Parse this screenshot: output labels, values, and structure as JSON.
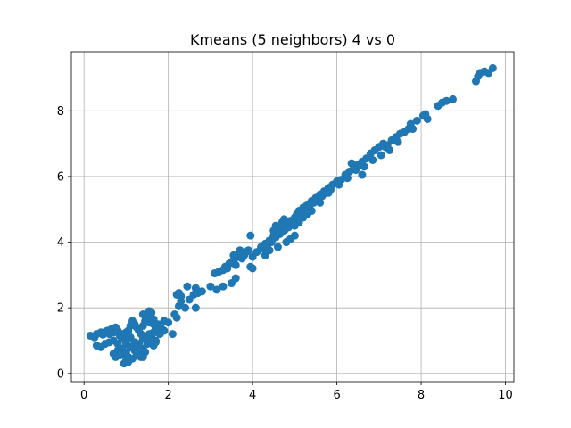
{
  "chart_data": {
    "type": "scatter",
    "title": "Kmeans (5 neighbors) 4 vs 0",
    "xlabel": "",
    "ylabel": "",
    "xlim": [
      -0.3,
      10.2
    ],
    "ylim": [
      -0.25,
      9.8
    ],
    "x_ticks": [
      0,
      2,
      4,
      6,
      8,
      10
    ],
    "y_ticks": [
      0,
      2,
      4,
      6,
      8
    ],
    "x_tick_labels": [
      "0",
      "2",
      "4",
      "6",
      "8",
      "10"
    ],
    "y_tick_labels": [
      "0",
      "2",
      "4",
      "6",
      "8"
    ],
    "grid": true,
    "marker_color": "#1f77b4",
    "series": [
      {
        "name": "points",
        "x": [
          0.15,
          0.25,
          0.3,
          0.4,
          0.45,
          0.55,
          0.6,
          0.65,
          0.7,
          0.75,
          0.8,
          0.85,
          0.9,
          0.95,
          1.0,
          1.05,
          1.1,
          1.15,
          1.2,
          1.25,
          1.3,
          1.35,
          1.4,
          1.45,
          1.5,
          1.55,
          1.6,
          1.65,
          1.7,
          1.75,
          0.3,
          0.4,
          0.5,
          0.6,
          0.7,
          0.8,
          0.9,
          1.0,
          1.1,
          1.2,
          1.3,
          1.4,
          1.5,
          1.6,
          1.7,
          0.7,
          0.8,
          0.9,
          1.0,
          1.1,
          1.2,
          1.3,
          1.4,
          1.5,
          0.75,
          0.85,
          0.95,
          1.05,
          1.15,
          1.25,
          1.35,
          0.95,
          1.0,
          1.05,
          1.1,
          1.3,
          1.35,
          1.4,
          1.45,
          1.0,
          1.1,
          1.2,
          1.5,
          1.6,
          1.7,
          1.8,
          1.9,
          1.55,
          1.65,
          1.75,
          1.85,
          1.4,
          1.5,
          1.6,
          1.45,
          1.55,
          1.65,
          1.7,
          1.9,
          2.0,
          2.1,
          2.2,
          2.25,
          2.3,
          2.2,
          2.15,
          2.4,
          2.5,
          2.6,
          2.65,
          2.7,
          2.45,
          2.25,
          2.3,
          2.65,
          1.6,
          1.65,
          2.8,
          3.0,
          3.1,
          3.2,
          3.3,
          3.35,
          3.4,
          3.45,
          3.5,
          3.55,
          3.6,
          3.65,
          3.7,
          3.75,
          3.8,
          3.85,
          3.9,
          3.15,
          3.3,
          3.5,
          3.6,
          3.55,
          3.7,
          3.95,
          4.0,
          3.95,
          4.0,
          4.1,
          4.2,
          4.3,
          4.4,
          4.5,
          4.6,
          4.7,
          4.8,
          4.9,
          5.0,
          4.25,
          4.35,
          4.45,
          4.55,
          4.65,
          4.75,
          4.85,
          4.95,
          4.3,
          4.4,
          4.6,
          4.8,
          4.9,
          5.0,
          4.7,
          4.75,
          4.5,
          4.55,
          5.05,
          5.1,
          5.2,
          5.3,
          5.4,
          5.5,
          5.6,
          5.7,
          5.8,
          5.9,
          5.15,
          5.25,
          5.35,
          5.45,
          5.55,
          5.65,
          5.75,
          5.85,
          5.0,
          5.2,
          5.4,
          5.6,
          5.8,
          5.1,
          5.3,
          6.0,
          6.1,
          6.2,
          6.3,
          6.4,
          6.5,
          6.6,
          6.7,
          6.8,
          6.9,
          6.05,
          6.25,
          6.45,
          6.65,
          6.85,
          6.55,
          6.35,
          6.6,
          7.0,
          7.1,
          7.2,
          7.3,
          7.4,
          7.5,
          7.05,
          7.25,
          7.45,
          7.15,
          7.6,
          7.7,
          7.8,
          7.9,
          8.05,
          8.1,
          8.15,
          7.75,
          8.4,
          8.5,
          8.6,
          8.75,
          9.3,
          9.35,
          9.4,
          9.5,
          9.6,
          9.7
        ],
        "y": [
          1.15,
          1.1,
          1.2,
          1.25,
          1.18,
          1.3,
          1.2,
          1.35,
          1.25,
          1.4,
          1.3,
          1.15,
          1.2,
          1.1,
          1.25,
          1.3,
          1.45,
          1.6,
          1.5,
          1.4,
          1.3,
          1.2,
          1.45,
          1.6,
          1.75,
          1.9,
          1.7,
          1.5,
          1.35,
          1.25,
          0.85,
          0.8,
          0.9,
          0.95,
          1.0,
          0.9,
          1.05,
          1.0,
          1.1,
          0.95,
          0.9,
          1.05,
          1.1,
          1.0,
          0.95,
          0.6,
          0.7,
          0.75,
          0.65,
          0.8,
          0.7,
          0.85,
          0.75,
          0.9,
          0.5,
          0.55,
          0.6,
          0.5,
          0.45,
          0.55,
          0.5,
          0.3,
          0.4,
          0.35,
          0.45,
          0.6,
          0.7,
          0.5,
          0.65,
          0.9,
          0.8,
          0.95,
          1.05,
          1.15,
          1.0,
          1.2,
          1.3,
          1.55,
          1.65,
          1.5,
          1.35,
          1.8,
          1.7,
          1.85,
          1.6,
          1.2,
          1.25,
          1.4,
          1.6,
          1.55,
          1.2,
          1.7,
          2.05,
          2.2,
          2.4,
          1.8,
          2.0,
          2.25,
          2.4,
          2.6,
          2.45,
          2.65,
          2.45,
          2.35,
          2.0,
          0.95,
          0.85,
          2.5,
          2.65,
          3.05,
          3.1,
          3.15,
          3.25,
          3.2,
          3.35,
          3.4,
          3.45,
          3.3,
          3.55,
          3.65,
          3.5,
          3.6,
          3.7,
          3.75,
          2.55,
          2.65,
          2.75,
          2.9,
          3.6,
          3.75,
          3.25,
          3.2,
          4.2,
          3.55,
          3.7,
          3.85,
          3.95,
          4.05,
          4.2,
          4.3,
          4.4,
          4.55,
          4.65,
          4.75,
          3.8,
          3.9,
          4.0,
          4.15,
          4.25,
          4.35,
          4.45,
          4.55,
          3.6,
          3.75,
          3.85,
          4.0,
          4.1,
          4.2,
          4.6,
          4.7,
          4.35,
          4.5,
          4.85,
          4.95,
          5.05,
          5.15,
          5.25,
          5.35,
          5.45,
          5.55,
          5.65,
          5.75,
          4.9,
          5.0,
          5.1,
          5.2,
          5.3,
          5.4,
          5.5,
          5.6,
          4.5,
          4.75,
          4.95,
          5.2,
          5.5,
          4.6,
          4.85,
          5.85,
          5.9,
          6.05,
          6.15,
          6.25,
          6.35,
          6.45,
          6.55,
          6.7,
          6.8,
          5.75,
          5.95,
          6.2,
          6.3,
          6.5,
          6.35,
          6.4,
          6.05,
          6.9,
          7.0,
          6.95,
          7.1,
          7.2,
          7.3,
          6.65,
          6.8,
          7.05,
          6.9,
          7.35,
          7.45,
          7.45,
          7.7,
          7.85,
          7.9,
          7.75,
          7.6,
          8.15,
          8.25,
          8.3,
          8.35,
          8.9,
          9.05,
          9.15,
          9.2,
          9.15,
          9.3
        ]
      }
    ]
  }
}
